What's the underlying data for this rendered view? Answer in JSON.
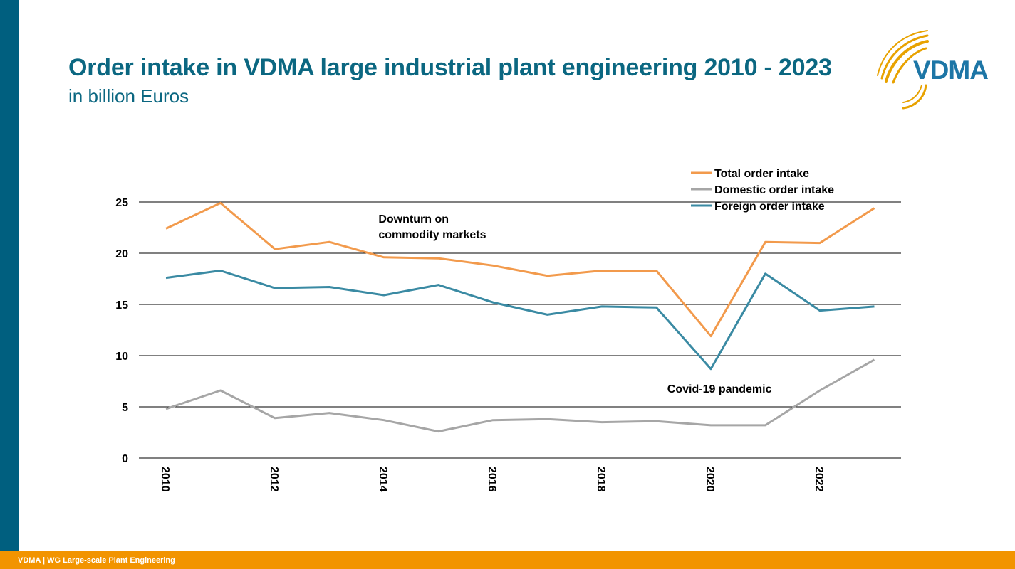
{
  "header": {
    "title": "Order intake in VDMA large industrial plant engineering 2010 - 2023",
    "subtitle": "in billion Euros"
  },
  "logo": {
    "text": "VDMA",
    "icon": "vdma-logo-arcs-icon"
  },
  "footer": {
    "text": "VDMA | WG Large-scale Plant Engineering"
  },
  "colors": {
    "brand_blue": "#005f7f",
    "title_blue": "#0b6781",
    "footer_orange": "#f29400",
    "total": "#f29a4c",
    "domestic": "#a6a6a6",
    "foreign": "#3a8aa3"
  },
  "chart_data": {
    "type": "line",
    "title": "Order intake in VDMA large industrial plant engineering 2010 - 2023",
    "subtitle": "in billion Euros",
    "xlabel": "",
    "ylabel": "",
    "x": [
      2010,
      2011,
      2012,
      2013,
      2014,
      2015,
      2016,
      2017,
      2018,
      2019,
      2020,
      2021,
      2022,
      2023
    ],
    "x_tick_labels": [
      "2010",
      "2012",
      "2014",
      "2016",
      "2018",
      "2020",
      "2022"
    ],
    "x_tick_values": [
      2010,
      2012,
      2014,
      2016,
      2018,
      2020,
      2022
    ],
    "y_ticks": [
      0,
      5,
      10,
      15,
      20,
      25
    ],
    "ylim": [
      0,
      25
    ],
    "grid": "horizontal",
    "legend_position": "top-right",
    "series": [
      {
        "name": "Total order intake",
        "color": "#f29a4c",
        "values": [
          22.4,
          24.9,
          20.4,
          21.1,
          19.6,
          19.5,
          18.8,
          17.8,
          18.3,
          18.3,
          11.9,
          21.1,
          21.0,
          24.4
        ]
      },
      {
        "name": "Domestic order intake",
        "color": "#a6a6a6",
        "values": [
          4.8,
          6.6,
          3.9,
          4.4,
          3.7,
          2.6,
          3.7,
          3.8,
          3.5,
          3.6,
          3.2,
          3.2,
          6.6,
          9.6
        ]
      },
      {
        "name": "Foreign order intake",
        "color": "#3a8aa3",
        "values": [
          17.6,
          18.3,
          16.6,
          16.7,
          15.9,
          16.9,
          15.2,
          14.0,
          14.8,
          14.7,
          8.7,
          18.0,
          14.4,
          14.8
        ]
      }
    ],
    "annotations": [
      {
        "lines": [
          "Downturn on",
          "commodity markets"
        ],
        "x": 2013.9,
        "y": 23.0
      },
      {
        "lines": [
          "Covid-19 pandemic"
        ],
        "x": 2019.2,
        "y": 6.4
      }
    ]
  }
}
